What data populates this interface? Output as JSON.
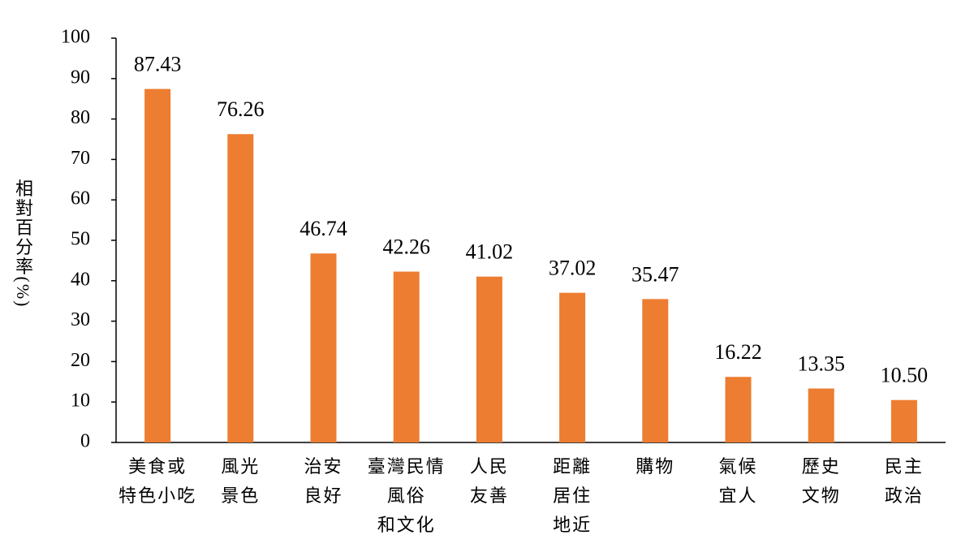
{
  "chart_data": {
    "type": "bar",
    "y_label": "相對百分率(%)",
    "categories": [
      [
        "美食或",
        "特色小吃"
      ],
      [
        "風光",
        "景色"
      ],
      [
        "治安",
        "良好"
      ],
      [
        "臺灣民情",
        "風俗",
        "和文化"
      ],
      [
        "人民",
        "友善"
      ],
      [
        "距離",
        "居住",
        "地近"
      ],
      [
        "購物"
      ],
      [
        "氣候",
        "宜人"
      ],
      [
        "歷史",
        "文物"
      ],
      [
        "民主",
        "政治"
      ]
    ],
    "values": [
      87.43,
      76.26,
      46.74,
      42.26,
      41.02,
      37.02,
      35.47,
      16.22,
      13.35,
      10.5
    ],
    "value_labels": [
      "87.43",
      "76.26",
      "46.74",
      "42.26",
      "41.02",
      "37.02",
      "35.47",
      "16.22",
      "13.35",
      "10.50"
    ],
    "color": "#ed7d31",
    "ylim": [
      0,
      100
    ],
    "yticks": [
      0,
      10,
      20,
      30,
      40,
      50,
      60,
      70,
      80,
      90,
      100
    ],
    "grid": false
  }
}
